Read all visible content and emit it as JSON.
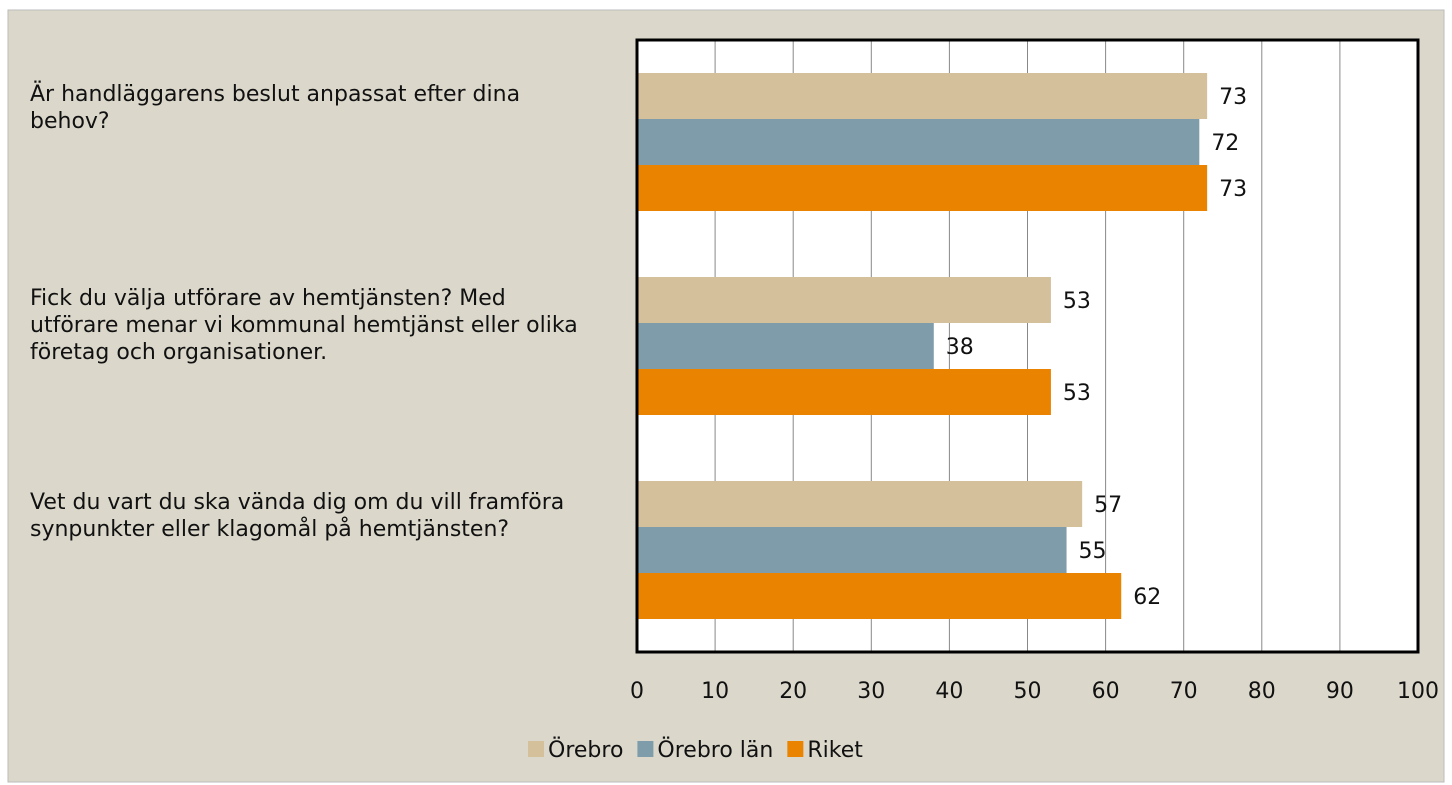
{
  "chart_data": {
    "type": "bar",
    "orientation": "horizontal",
    "categories": [
      "Är handläggarens beslut anpassat efter dina behov?",
      "Fick du välja utförare av hemtjänsten? Med utförare menar vi kommunal hemtjänst eller olika företag och organisationer.",
      "Vet du vart du ska vända dig om du vill framföra synpunkter eller klagomål på hemtjänsten?"
    ],
    "series": [
      {
        "name": "Örebro",
        "color": "#d4c09a",
        "values": [
          73,
          53,
          57
        ]
      },
      {
        "name": "Örebro län",
        "color": "#7f9cab",
        "values": [
          72,
          38,
          55
        ]
      },
      {
        "name": "Riket",
        "color": "#e98300",
        "values": [
          73,
          53,
          62
        ]
      }
    ],
    "xlim": [
      0,
      100
    ],
    "xticks": [
      0,
      10,
      20,
      30,
      40,
      50,
      60,
      70,
      80,
      90,
      100
    ],
    "grid": true,
    "legend": "bottom"
  }
}
